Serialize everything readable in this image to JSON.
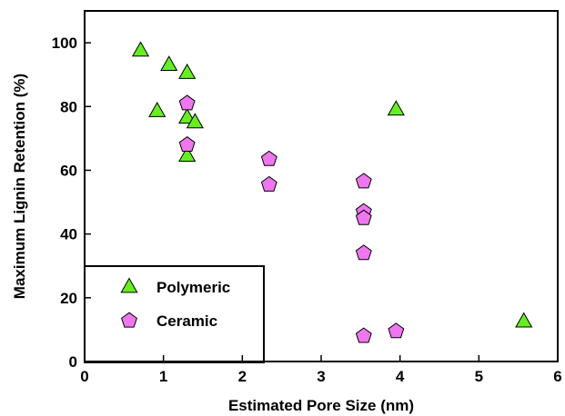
{
  "chart_data": {
    "type": "scatter",
    "title": "",
    "xlabel": "Estimated Pore Size  (nm)",
    "ylabel": "Maximum Lignin Retention  (%)",
    "xlim": [
      0,
      6
    ],
    "ylim": [
      0,
      110
    ],
    "xticks": [
      0,
      1,
      2,
      3,
      4,
      5,
      6
    ],
    "yticks": [
      0,
      20,
      40,
      60,
      80,
      100
    ],
    "grid": false,
    "legend_position": "bottom-left",
    "series": [
      {
        "name": "Polymeric",
        "marker": "triangle",
        "color": "#66ee22",
        "points": [
          {
            "x": 0.71,
            "y": 97.5
          },
          {
            "x": 0.92,
            "y": 78.5
          },
          {
            "x": 1.07,
            "y": 93.0
          },
          {
            "x": 1.3,
            "y": 90.5
          },
          {
            "x": 1.3,
            "y": 76.5
          },
          {
            "x": 1.4,
            "y": 75.0
          },
          {
            "x": 1.3,
            "y": 64.5
          },
          {
            "x": 3.95,
            "y": 79.0
          },
          {
            "x": 5.57,
            "y": 12.5
          }
        ]
      },
      {
        "name": "Ceramic",
        "marker": "pentagon",
        "color": "#ee77ee",
        "points": [
          {
            "x": 1.3,
            "y": 81.0
          },
          {
            "x": 1.3,
            "y": 68.0
          },
          {
            "x": 2.34,
            "y": 63.5
          },
          {
            "x": 2.34,
            "y": 55.5
          },
          {
            "x": 3.54,
            "y": 56.5
          },
          {
            "x": 3.54,
            "y": 47.0
          },
          {
            "x": 3.54,
            "y": 45.0
          },
          {
            "x": 3.54,
            "y": 34.0
          },
          {
            "x": 3.54,
            "y": 8.0
          },
          {
            "x": 3.95,
            "y": 9.5
          }
        ]
      }
    ]
  }
}
